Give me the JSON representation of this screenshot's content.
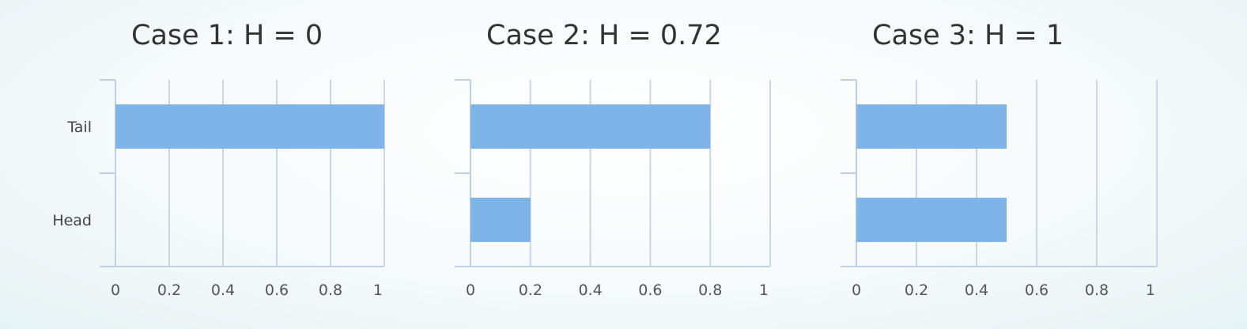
{
  "chart_data": [
    {
      "type": "bar",
      "orientation": "horizontal",
      "title": "Case 1: H = 0",
      "categories": [
        "Tail",
        "Head"
      ],
      "values": [
        1.0,
        0.0
      ],
      "xlim": [
        0,
        1
      ],
      "xticks": [
        "0",
        "0.2",
        "0.4",
        "0.6",
        "0.8",
        "1"
      ],
      "grid": true,
      "bar_color": "#7fb4e8"
    },
    {
      "type": "bar",
      "orientation": "horizontal",
      "title": "Case 2: H = 0.72",
      "categories": [
        "Tail",
        "Head"
      ],
      "values": [
        0.8,
        0.2
      ],
      "xlim": [
        0,
        1
      ],
      "xticks": [
        "0",
        "0.2",
        "0.4",
        "0.6",
        "0.8",
        "1"
      ],
      "grid": true,
      "bar_color": "#7fb4e8"
    },
    {
      "type": "bar",
      "orientation": "horizontal",
      "title": "Case 3: H = 1",
      "categories": [
        "Tail",
        "Head"
      ],
      "values": [
        0.5,
        0.5
      ],
      "xlim": [
        0,
        1
      ],
      "xticks": [
        "0",
        "0.2",
        "0.4",
        "0.6",
        "0.8",
        "1"
      ],
      "grid": true,
      "bar_color": "#7fb4e8"
    }
  ],
  "colors": {
    "bar": "#7fb4e8",
    "grid": "#ccd6e0",
    "axis": "#c0d0e0"
  }
}
